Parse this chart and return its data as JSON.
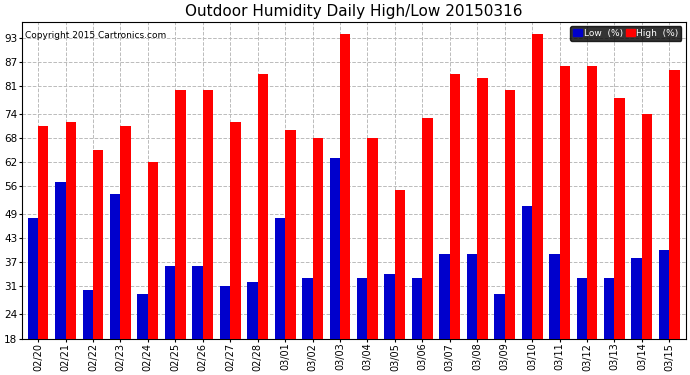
{
  "title": "Outdoor Humidity Daily High/Low 20150316",
  "copyright": "Copyright 2015 Cartronics.com",
  "categories": [
    "02/20",
    "02/21",
    "02/22",
    "02/23",
    "02/24",
    "02/25",
    "02/26",
    "02/27",
    "02/28",
    "03/01",
    "03/02",
    "03/03",
    "03/04",
    "03/05",
    "03/06",
    "03/07",
    "03/08",
    "03/09",
    "03/10",
    "03/11",
    "03/12",
    "03/13",
    "03/14",
    "03/15"
  ],
  "high_values": [
    71,
    72,
    65,
    71,
    62,
    80,
    80,
    72,
    84,
    70,
    68,
    94,
    68,
    55,
    73,
    84,
    83,
    80,
    94,
    86,
    86,
    78,
    74,
    85
  ],
  "low_values": [
    48,
    57,
    30,
    54,
    29,
    36,
    36,
    31,
    32,
    48,
    33,
    63,
    33,
    34,
    33,
    39,
    39,
    29,
    51,
    39,
    33,
    33,
    38,
    40
  ],
  "bar_width": 0.38,
  "high_color": "#ff0000",
  "low_color": "#0000cc",
  "bg_color": "#ffffff",
  "grid_color": "#bbbbbb",
  "ylim_min": 18,
  "ylim_max": 97,
  "yticks": [
    18,
    24,
    31,
    37,
    43,
    49,
    56,
    62,
    68,
    74,
    81,
    87,
    93
  ],
  "title_fontsize": 11,
  "legend_label_low": "Low  (%)",
  "legend_label_high": "High  (%)",
  "ybase": 18
}
